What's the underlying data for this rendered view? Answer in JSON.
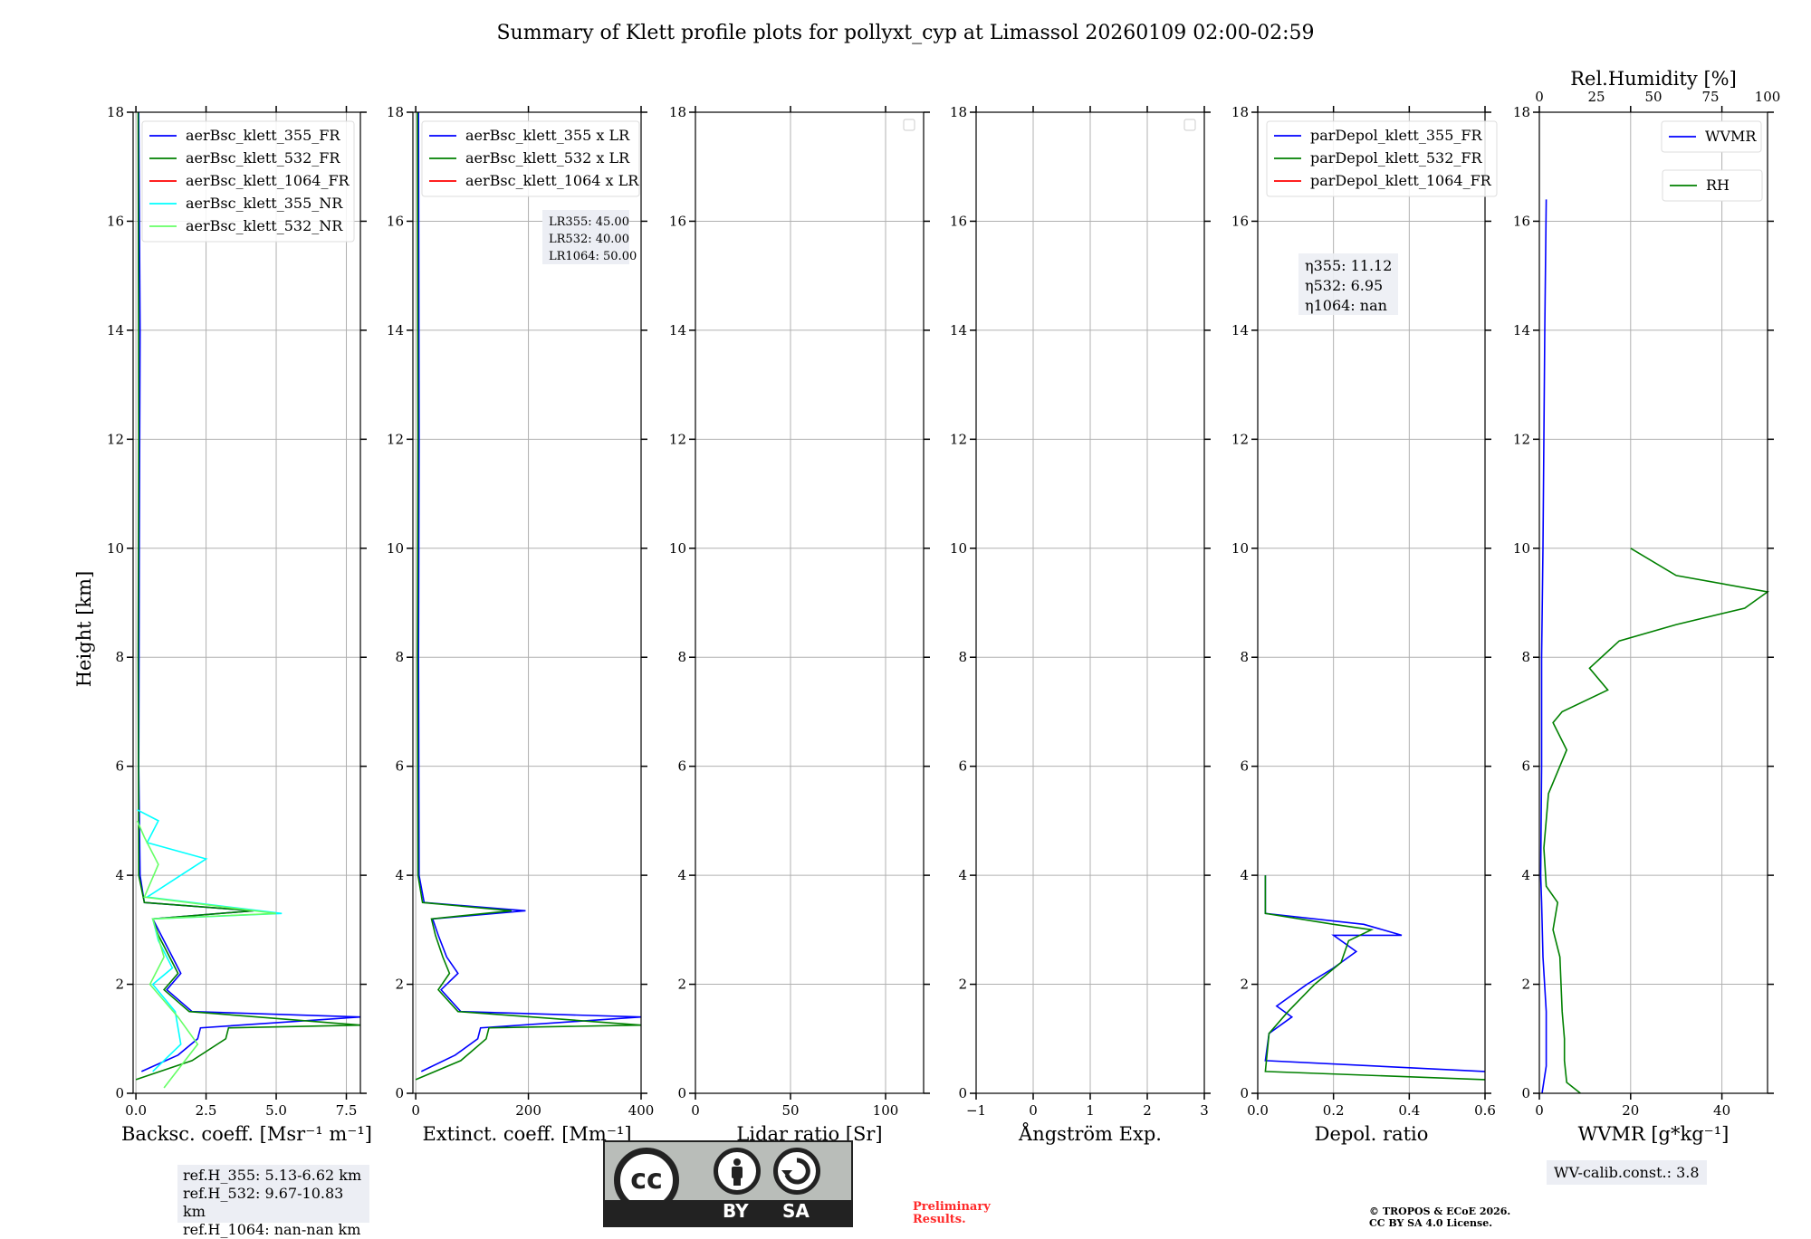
{
  "title": "Summary of Klett profile plots for pollyxt_cyp at Limassol 20260109 02:00-02:59",
  "ylabel": "Height [km]",
  "colors": {
    "b355": "#0000ff",
    "b532": "#008000",
    "b1064": "#ff0000",
    "n355": "#00ffff",
    "n532": "#66ff66"
  },
  "panels": {
    "bsc": {
      "xlabel": "Backsc. coeff. [Msr⁻¹ m⁻¹]",
      "legend": [
        "aerBsc_klett_355_FR",
        "aerBsc_klett_532_FR",
        "aerBsc_klett_1064_FR",
        "aerBsc_klett_355_NR",
        "aerBsc_klett_532_NR"
      ]
    },
    "ext": {
      "xlabel": "Extinct. coeff. [Mm⁻¹]",
      "legend": [
        "aerBsc_klett_355 x LR",
        "aerBsc_klett_532 x LR",
        "aerBsc_klett_1064 x LR"
      ],
      "lr": [
        "LR355: 45.00",
        "LR532: 40.00",
        "LR1064: 50.00"
      ]
    },
    "lr": {
      "xlabel": "Lidar ratio [Sr]"
    },
    "ang": {
      "xlabel": "Ångström Exp."
    },
    "dep": {
      "xlabel": "Depol. ratio",
      "legend": [
        "parDepol_klett_355_FR",
        "parDepol_klett_532_FR",
        "parDepol_klett_1064_FR"
      ],
      "eta": [
        "η355: 11.12",
        "η532: 6.95",
        "η1064: nan"
      ]
    },
    "wv": {
      "xlabel": "WVMR [g*kg⁻¹]",
      "toplabel": "Rel.Humidity [%]",
      "legend": [
        "WVMR",
        "RH"
      ]
    }
  },
  "refinfo": [
    "ref.H_355: 5.13-6.62 km",
    "ref.H_532: 9.67-10.83 km",
    "ref.H_1064: nan-nan km"
  ],
  "wvcalib": "WV-calib.const.: 3.8",
  "license": {
    "by": "BY",
    "sa": "SA",
    "cc": "cc"
  },
  "preliminary": [
    "Preliminary",
    "Results."
  ],
  "copyright": [
    "© TROPOS & ECoE 2026.",
    "CC BY SA 4.0 License."
  ],
  "chart_data": [
    {
      "type": "line",
      "name": "backscatter",
      "ylim": [
        0,
        18
      ],
      "xlim": [
        -0.1,
        8
      ],
      "xticks": [
        0,
        2.5,
        5,
        7.5
      ],
      "xtick_labels": [
        "0.0",
        "2.5",
        "5.0",
        "7.5"
      ],
      "yticks": [
        0,
        2,
        4,
        6,
        8,
        10,
        12,
        14,
        16,
        18
      ],
      "series": [
        {
          "name": "aerBsc_klett_355_FR",
          "points": [
            [
              0.2,
              0.4
            ],
            [
              1.5,
              0.7
            ],
            [
              2.2,
              1.0
            ],
            [
              2.3,
              1.2
            ],
            [
              8,
              1.4
            ],
            [
              2.0,
              1.5
            ],
            [
              1.1,
              1.9
            ],
            [
              1.6,
              2.2
            ],
            [
              1.3,
              2.5
            ],
            [
              0.9,
              2.9
            ],
            [
              0.6,
              3.2
            ],
            [
              4.2,
              3.35
            ],
            [
              0.3,
              3.5
            ],
            [
              0.15,
              4
            ],
            [
              0.1,
              6
            ],
            [
              0.12,
              10
            ],
            [
              0.15,
              14
            ],
            [
              0.1,
              18
            ]
          ]
        },
        {
          "name": "aerBsc_klett_532_FR",
          "points": [
            [
              0.0,
              0.25
            ],
            [
              2.0,
              0.6
            ],
            [
              3.2,
              1.0
            ],
            [
              3.3,
              1.2
            ],
            [
              8,
              1.25
            ],
            [
              1.9,
              1.5
            ],
            [
              1.0,
              1.9
            ],
            [
              1.5,
              2.2
            ],
            [
              1.2,
              2.5
            ],
            [
              0.8,
              2.9
            ],
            [
              0.6,
              3.2
            ],
            [
              4.2,
              3.35
            ],
            [
              0.3,
              3.5
            ],
            [
              0.1,
              4
            ],
            [
              0.08,
              8
            ],
            [
              0.1,
              12
            ],
            [
              0.08,
              18
            ]
          ]
        },
        {
          "name": "aerBsc_klett_1064_FR",
          "points": []
        },
        {
          "name": "aerBsc_klett_355_NR",
          "points": [
            [
              0.6,
              0.4
            ],
            [
              1.2,
              0.7
            ],
            [
              1.6,
              0.9
            ],
            [
              1.4,
              1.5
            ],
            [
              0.6,
              2.0
            ],
            [
              1.3,
              2.3
            ],
            [
              0.8,
              2.8
            ],
            [
              0.6,
              3.2
            ],
            [
              5.2,
              3.3
            ],
            [
              0.4,
              3.6
            ],
            [
              1.6,
              4.0
            ],
            [
              2.5,
              4.3
            ],
            [
              0.4,
              4.6
            ],
            [
              0.8,
              5.0
            ],
            [
              0.05,
              5.2
            ]
          ]
        },
        {
          "name": "aerBsc_klett_532_NR",
          "points": [
            [
              1.0,
              0.1
            ],
            [
              1.6,
              0.5
            ],
            [
              2.2,
              0.9
            ],
            [
              1.5,
              1.4
            ],
            [
              0.5,
              2.0
            ],
            [
              1.0,
              2.5
            ],
            [
              0.6,
              3.2
            ],
            [
              5.0,
              3.3
            ],
            [
              0.3,
              3.6
            ],
            [
              0.8,
              4.2
            ],
            [
              0.3,
              4.7
            ],
            [
              0.05,
              5.0
            ]
          ]
        }
      ]
    },
    {
      "type": "line",
      "name": "extinction",
      "ylim": [
        0,
        18
      ],
      "xlim": [
        -5,
        400
      ],
      "xticks": [
        0,
        200,
        400
      ],
      "xtick_labels": [
        "0",
        "200",
        "400"
      ],
      "yticks": [
        0,
        2,
        4,
        6,
        8,
        10,
        12,
        14,
        16,
        18
      ],
      "series": [
        {
          "name": "aerBsc_klett_355 x LR",
          "points": [
            [
              10,
              0.4
            ],
            [
              70,
              0.7
            ],
            [
              110,
              1.0
            ],
            [
              115,
              1.2
            ],
            [
              400,
              1.4
            ],
            [
              80,
              1.5
            ],
            [
              45,
              1.9
            ],
            [
              75,
              2.2
            ],
            [
              55,
              2.5
            ],
            [
              40,
              2.9
            ],
            [
              30,
              3.2
            ],
            [
              195,
              3.35
            ],
            [
              15,
              3.5
            ],
            [
              6,
              4
            ],
            [
              5,
              8
            ],
            [
              6,
              12
            ],
            [
              5,
              18
            ]
          ]
        },
        {
          "name": "aerBsc_klett_532 x LR",
          "points": [
            [
              0,
              0.25
            ],
            [
              80,
              0.6
            ],
            [
              125,
              1.0
            ],
            [
              130,
              1.2
            ],
            [
              400,
              1.25
            ],
            [
              75,
              1.5
            ],
            [
              40,
              1.9
            ],
            [
              60,
              2.2
            ],
            [
              48,
              2.5
            ],
            [
              35,
              2.9
            ],
            [
              28,
              3.2
            ],
            [
              170,
              3.35
            ],
            [
              12,
              3.5
            ],
            [
              4,
              4
            ],
            [
              3,
              8
            ],
            [
              4,
              12
            ],
            [
              3,
              18
            ]
          ]
        },
        {
          "name": "aerBsc_klett_1064 x LR",
          "points": []
        }
      ]
    },
    {
      "type": "line",
      "name": "lidar_ratio",
      "ylim": [
        0,
        18
      ],
      "xlim": [
        0,
        120
      ],
      "xticks": [
        0,
        50,
        100
      ],
      "xtick_labels": [
        "0",
        "50",
        "100"
      ],
      "series": []
    },
    {
      "type": "line",
      "name": "angstrom",
      "ylim": [
        0,
        18
      ],
      "xlim": [
        -1,
        3
      ],
      "xticks": [
        -1,
        0,
        1,
        2,
        3
      ],
      "xtick_labels": [
        "−1",
        "0",
        "1",
        "2",
        "3"
      ],
      "series": []
    },
    {
      "type": "line",
      "name": "depol",
      "ylim": [
        0,
        18
      ],
      "xlim": [
        0,
        0.6
      ],
      "xticks": [
        0,
        0.2,
        0.4,
        0.6
      ],
      "xtick_labels": [
        "0.0",
        "0.2",
        "0.4",
        "0.6"
      ],
      "series": [
        {
          "name": "parDepol_klett_355_FR",
          "points": [
            [
              0.6,
              0.4
            ],
            [
              0.02,
              0.6
            ],
            [
              0.03,
              1.1
            ],
            [
              0.09,
              1.4
            ],
            [
              0.05,
              1.6
            ],
            [
              0.13,
              2.0
            ],
            [
              0.2,
              2.3
            ],
            [
              0.26,
              2.6
            ],
            [
              0.2,
              2.9
            ],
            [
              0.38,
              2.9
            ],
            [
              0.28,
              3.1
            ],
            [
              0.02,
              3.3
            ],
            [
              0.02,
              4.0
            ]
          ]
        },
        {
          "name": "parDepol_klett_532_FR",
          "points": [
            [
              0.6,
              0.25
            ],
            [
              0.02,
              0.4
            ],
            [
              0.03,
              1.1
            ],
            [
              0.08,
              1.5
            ],
            [
              0.15,
              2.0
            ],
            [
              0.22,
              2.4
            ],
            [
              0.24,
              2.8
            ],
            [
              0.3,
              3.0
            ],
            [
              0.2,
              3.1
            ],
            [
              0.02,
              3.3
            ],
            [
              0.02,
              4.0
            ]
          ]
        },
        {
          "name": "parDepol_klett_1064_FR",
          "points": []
        }
      ]
    },
    {
      "type": "line",
      "name": "wv",
      "ylim": [
        0,
        18
      ],
      "xlim": [
        0,
        50
      ],
      "xticks": [
        0,
        20,
        40
      ],
      "xtick_labels": [
        "0",
        "20",
        "40"
      ],
      "top_xlim": [
        0,
        100
      ],
      "top_xticks": [
        0,
        25,
        50,
        75,
        100
      ],
      "top_xtick_labels": [
        "0",
        "25",
        "50",
        "75",
        "100"
      ],
      "series": [
        {
          "name": "WVMR",
          "points": [
            [
              0.6,
              0
            ],
            [
              1.5,
              0.5
            ],
            [
              1.5,
              1.5
            ],
            [
              0.8,
              2.5
            ],
            [
              0.5,
              3.5
            ],
            [
              0.3,
              4
            ],
            [
              0.5,
              6
            ],
            [
              0.5,
              8
            ],
            [
              0.8,
              10
            ],
            [
              1.0,
              12
            ],
            [
              1.2,
              14
            ],
            [
              1.5,
              16.4
            ]
          ]
        },
        {
          "name": "RH",
          "points": [
            [
              18,
              0.0
            ],
            [
              12,
              0.2
            ],
            [
              11,
              0.6
            ],
            [
              11,
              1.0
            ],
            [
              10,
              1.5
            ],
            [
              9,
              2.5
            ],
            [
              6,
              3.0
            ],
            [
              8,
              3.5
            ],
            [
              3,
              3.8
            ],
            [
              2,
              4.5
            ],
            [
              4,
              5.5
            ],
            [
              12,
              6.3
            ],
            [
              6,
              6.8
            ],
            [
              10,
              7.0
            ],
            [
              30,
              7.4
            ],
            [
              22,
              7.8
            ],
            [
              35,
              8.3
            ],
            [
              60,
              8.6
            ],
            [
              90,
              8.9
            ],
            [
              100,
              9.2
            ],
            [
              60,
              9.5
            ],
            [
              40,
              10.0
            ]
          ]
        }
      ]
    }
  ]
}
